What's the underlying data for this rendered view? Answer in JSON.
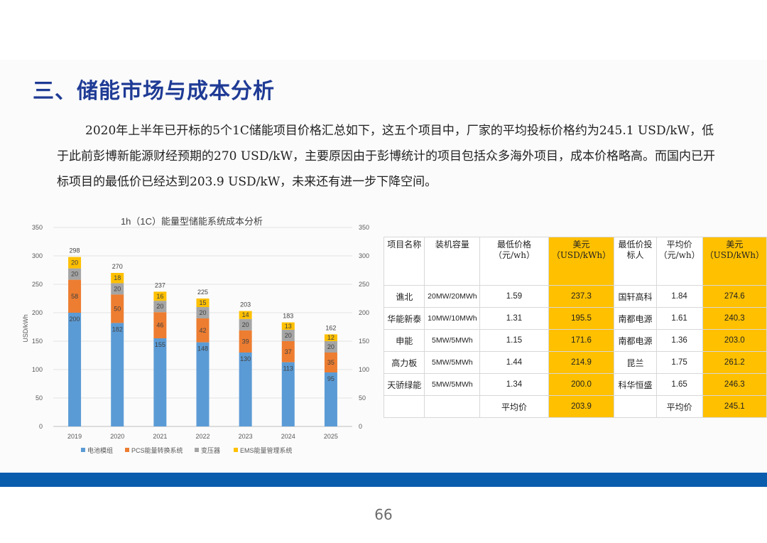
{
  "header": {
    "title": "三、储能市场与成本分析"
  },
  "intro": {
    "text": "2020年上半年已开标的5个1C储能项目价格汇总如下，这五个项目中，厂家的平均投标价格约为245.1 USD/kW，低于此前彭博新能源财经预期的270 USD/kW，主要原因由于彭博统计的项目包括众多海外项目，成本价格略高。而国内已开标项目的最低价已经达到203.9 USD/kW，未来还有进一步下降空间。"
  },
  "chart_data": {
    "type": "bar",
    "stacked": true,
    "title": "1h（1C）能量型储能系统成本分析",
    "ylabel": "USD/kWh",
    "ylim": [
      0,
      350
    ],
    "yticks": [
      0,
      50,
      100,
      150,
      200,
      250,
      300,
      350
    ],
    "secondary_yticks": [
      0,
      50,
      100,
      150,
      200,
      250,
      300,
      350
    ],
    "grid": true,
    "legend_position": "bottom",
    "categories": [
      "2019",
      "2020",
      "2021",
      "2022",
      "2023",
      "2024",
      "2025"
    ],
    "totals": [
      298,
      270,
      237,
      225,
      203,
      183,
      162
    ],
    "series": [
      {
        "name": "电池模组",
        "color": "#5b9bd5",
        "values": [
          200,
          182,
          155,
          148,
          130,
          113,
          95
        ]
      },
      {
        "name": "PCS能量转换系统",
        "color": "#ed7d31",
        "values": [
          58,
          50,
          46,
          42,
          39,
          37,
          35
        ]
      },
      {
        "name": "变压器",
        "color": "#a5a5a5",
        "values": [
          20,
          20,
          20,
          20,
          20,
          20,
          20
        ]
      },
      {
        "name": "EMS能量管理系统",
        "color": "#ffc000",
        "values": [
          20,
          18,
          16,
          15,
          14,
          13,
          12
        ]
      }
    ]
  },
  "table": {
    "headers": [
      "项目名称",
      "装机容量",
      "最低价格（元/wh）",
      "美元（USD/kWh）",
      "最低价投标人",
      "平均价（元/wh）",
      "美元（USD/kWh）"
    ],
    "rows": [
      [
        "谯北",
        "20MW/20MWh",
        "1.59",
        "237.3",
        "国轩高科",
        "1.84",
        "274.6"
      ],
      [
        "华能新泰",
        "10MW/10MWh",
        "1.31",
        "195.5",
        "南都电源",
        "1.61",
        "240.3"
      ],
      [
        "申能",
        "5MW/5MWh",
        "1.15",
        "171.6",
        "南都电源",
        "1.36",
        "203.0"
      ],
      [
        "高力板",
        "5MW/5MWh",
        "1.44",
        "214.9",
        "昆兰",
        "1.75",
        "261.2"
      ],
      [
        "天骄绿能",
        "5MW/5MWh",
        "1.34",
        "200.0",
        "科华恒盛",
        "1.65",
        "246.3"
      ]
    ],
    "average_row": [
      "",
      "",
      "平均价",
      "203.9",
      "",
      "平均价",
      "245.1"
    ],
    "highlight_color": "#ffc000"
  },
  "footer": {
    "page_number": "66",
    "bar_color": "#0a5cad"
  }
}
